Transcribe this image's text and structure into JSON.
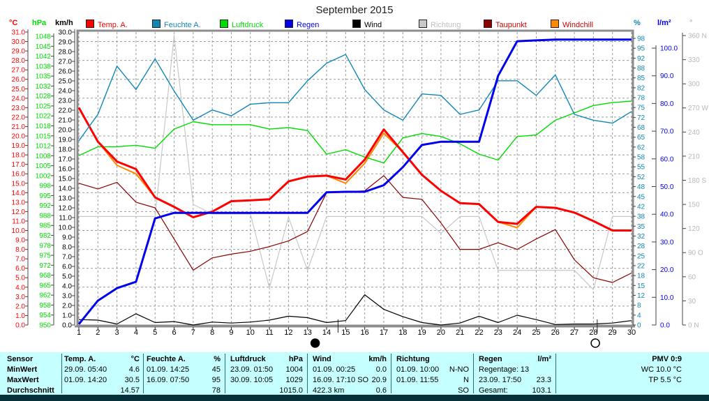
{
  "title": "September 2015",
  "legend": [
    {
      "label": "Temp. A.",
      "color": "#ff0000",
      "text_color": "#ff0000"
    },
    {
      "label": "Feuchte A.",
      "color": "#1187b8",
      "text_color": "#1187b8"
    },
    {
      "label": "Luftdruck",
      "color": "#00dd00",
      "text_color": "#00dd00"
    },
    {
      "label": "Regen",
      "color": "#0000ee",
      "text_color": "#0000ee"
    },
    {
      "label": "Wind",
      "color": "#000000",
      "text_color": "#000000"
    },
    {
      "label": "Richtung",
      "color": "#c8c8c8",
      "text_color": "#c0c0c0"
    },
    {
      "label": "Taupunkt",
      "color": "#8b0000",
      "text_color": "#cc0000"
    },
    {
      "label": "Windchill",
      "color": "#ff8800",
      "text_color": "#cc0000"
    }
  ],
  "axes": {
    "celsius": {
      "header": "°C",
      "color": "#ff0000",
      "labels": [
        "31.0",
        "30.0",
        "29.0",
        "28.0",
        "27.0",
        "26.0",
        "25.0",
        "24.0",
        "23.0",
        "22.0",
        "21.0",
        "20.0",
        "19.0",
        "18.0",
        "17.0",
        "16.0",
        "15.0",
        "14.0",
        "13.0",
        "12.0",
        "11.0",
        "10.0",
        "9.0",
        "8.0",
        "7.0",
        "6.0",
        "5.0",
        "4.0",
        "3.0",
        "2.0",
        "1.0",
        "0.0"
      ]
    },
    "hpa": {
      "header": "hPa",
      "color": "#00dd00",
      "labels": [
        "1048",
        "1045",
        "1042",
        "1038",
        "1035",
        "1032",
        "1028",
        "1025",
        "1022",
        "1018",
        "1015",
        "1012",
        "1008",
        "1005",
        "1002",
        "998",
        "995",
        "992",
        "988",
        "985",
        "982",
        "978",
        "975",
        "972",
        "968",
        "965",
        "962",
        "958",
        "954",
        "950"
      ]
    },
    "kmh": {
      "header": "km/h",
      "color": "#000000",
      "labels": [
        "30.0",
        "29.0",
        "28.0",
        "27.0",
        "26.0",
        "25.0",
        "24.0",
        "23.0",
        "22.0",
        "21.0",
        "20.0",
        "19.0",
        "18.0",
        "17.0",
        "16.0",
        "15.0",
        "14.0",
        "13.0",
        "12.0",
        "11.0",
        "10.0",
        "9.0",
        "8.0",
        "7.0",
        "6.0",
        "5.0",
        "4.0",
        "3.0",
        "2.0",
        "1.0",
        "0.0"
      ]
    },
    "percent": {
      "header": "%",
      "color": "#1187b8",
      "labels": [
        "98",
        "95",
        "92",
        "88",
        "85",
        "82",
        "78",
        "75",
        "72",
        "68",
        "65",
        "62",
        "58",
        "55",
        "52",
        "48",
        "45",
        "42",
        "38",
        "35",
        "32",
        "28",
        "25",
        "22",
        "18",
        "15",
        "12",
        "8",
        "4",
        "0"
      ]
    },
    "lm2": {
      "header": "l/m²",
      "color": "#0000ee",
      "labels": [
        "100.0",
        "90.0",
        "80.0",
        "70.0",
        "60.0",
        "50.0",
        "40.0",
        "30.0",
        "20.0",
        "10.0",
        "0.0"
      ]
    },
    "dir": {
      "header": "°",
      "color": "#b8b8b8",
      "labels": [
        "360 N",
        "330",
        "300",
        "270 W",
        "240",
        "210",
        "180 S",
        "150",
        "120",
        "90 O",
        "60",
        "30",
        "0 N"
      ]
    }
  },
  "chart_data": {
    "type": "line",
    "title": "September 2015",
    "x": [
      1,
      2,
      3,
      4,
      5,
      6,
      7,
      8,
      9,
      10,
      11,
      12,
      13,
      14,
      15,
      16,
      17,
      18,
      19,
      20,
      21,
      22,
      23,
      24,
      25,
      26,
      27,
      28,
      29,
      30
    ],
    "axis_ranges": {
      "celsius": {
        "min": 0,
        "max": 31,
        "unit": "°C"
      },
      "hpa": {
        "min": 950,
        "max": 1048,
        "unit": "hPa"
      },
      "kmh": {
        "min": 0,
        "max": 30,
        "unit": "km/h"
      },
      "percent": {
        "min": 0,
        "max": 98,
        "unit": "%"
      },
      "lm2": {
        "min": 0,
        "max": 100,
        "unit": "l/m²"
      },
      "dir": {
        "min": 0,
        "max": 360,
        "unit": "°"
      }
    },
    "series": [
      {
        "name": "Richtung",
        "axis": "dir",
        "color": "#c8c8c8",
        "width": 1.2,
        "values": [
          135,
          135,
          135,
          135,
          135,
          360,
          150,
          138,
          138,
          138,
          46,
          134,
          68,
          135,
          135,
          135,
          135,
          135,
          135,
          114,
          135,
          135,
          68,
          68,
          68,
          68,
          68,
          44,
          135,
          135
        ]
      },
      {
        "name": "Windchill",
        "axis": "celsius",
        "color": "#ff8800",
        "width": 2,
        "values": [
          23.0,
          19.4,
          16.9,
          16.0,
          13.5,
          12.5,
          11.4,
          12.0,
          13.1,
          13.2,
          13.3,
          15.2,
          15.7,
          15.8,
          15.0,
          17.1,
          20.3,
          18.3,
          15.9,
          14.2,
          12.9,
          12.8,
          10.9,
          10.3,
          12.5,
          12.4,
          11.9,
          11.0,
          10.0,
          10.0
        ]
      },
      {
        "name": "Taupunkt",
        "axis": "celsius",
        "color": "#8b0000",
        "width": 1.2,
        "values": [
          15.0,
          14.4,
          15.1,
          13.0,
          12.4,
          9.1,
          5.8,
          7.1,
          7.5,
          7.8,
          8.3,
          8.9,
          9.9,
          14.0,
          14.1,
          14.2,
          15.8,
          13.5,
          13.3,
          10.8,
          8.0,
          8.0,
          8.7,
          8.0,
          9.1,
          10.1,
          6.9,
          5.0,
          4.5,
          5.5
        ]
      },
      {
        "name": "Luftdruck",
        "axis": "hpa",
        "color": "#00dd00",
        "width": 1.4,
        "values": [
          1007.5,
          1010.5,
          1010.5,
          1011,
          1010,
          1016.5,
          1019,
          1018,
          1018,
          1018,
          1016.5,
          1017,
          1016,
          1008,
          1009.5,
          1007,
          1005,
          1013.5,
          1015,
          1014,
          1011.5,
          1008,
          1006,
          1014,
          1014.5,
          1019.5,
          1022,
          1024.5,
          1025.5,
          1026
        ]
      },
      {
        "name": "Temp. A.",
        "axis": "celsius",
        "color": "#ff0000",
        "width": 3,
        "values": [
          23.0,
          19.4,
          17.3,
          16.5,
          13.5,
          12.5,
          11.4,
          12.0,
          13.1,
          13.2,
          13.3,
          15.2,
          15.7,
          15.8,
          15.4,
          17.5,
          20.7,
          18.3,
          15.9,
          14.2,
          12.9,
          12.8,
          10.9,
          10.7,
          12.5,
          12.4,
          11.9,
          11.0,
          10.0,
          10.0
        ]
      },
      {
        "name": "Feuchte A.",
        "axis": "percent",
        "color": "#1187b8",
        "width": 1.4,
        "values": [
          63,
          72,
          88.5,
          80.5,
          91,
          80,
          70,
          73.5,
          71.5,
          75.5,
          76,
          76,
          83.5,
          89.5,
          92.5,
          80.5,
          73.5,
          70,
          79,
          78.5,
          72,
          73.5,
          83.5,
          83.5,
          78.5,
          85.5,
          72,
          70,
          69,
          73
        ]
      },
      {
        "name": "Wind",
        "axis": "kmh",
        "color": "#000000",
        "width": 1.2,
        "values": [
          0.55,
          0.5,
          0.1,
          1.15,
          0.25,
          0.35,
          0.0,
          0.3,
          0.2,
          0.3,
          0.5,
          0.9,
          0.75,
          0.25,
          0.45,
          3.1,
          1.6,
          0.85,
          0.25,
          0.0,
          0.2,
          0.9,
          0.25,
          1.0,
          0.55,
          0.05,
          0.1,
          0.1,
          0.2,
          0.45
        ]
      },
      {
        "name": "Regen",
        "axis": "lm2",
        "color": "#0000ee",
        "width": 3,
        "values": [
          0.3,
          8.8,
          13.3,
          15.6,
          38.5,
          40.5,
          40.5,
          40.5,
          40.5,
          40.5,
          40.5,
          40.5,
          40.5,
          47.9,
          48.1,
          48.1,
          50.5,
          57,
          65,
          66.2,
          66.2,
          66.2,
          90,
          102.5,
          102.8,
          103.1,
          103.1,
          103.1,
          103.1,
          103.1
        ]
      }
    ],
    "grid": true,
    "legend_position": "top"
  },
  "moon": [
    {
      "symbol": "new-moon",
      "day": 13.4,
      "tick_day": 14.6
    },
    {
      "symbol": "full-moon",
      "day": 28.1,
      "tick_day": 28.2
    }
  ],
  "table": {
    "row_labels": [
      "Sensor",
      "MinWert",
      "MaxWert",
      "Durchschnitt"
    ],
    "columns": [
      {
        "name": "Temp. A.",
        "unit": "°C",
        "rows": [
          [
            "29.09.  05:40",
            "4.6"
          ],
          [
            "01.09.  14:20",
            "30.5"
          ],
          [
            "",
            "14.57"
          ]
        ]
      },
      {
        "name": "Feuchte A.",
        "unit": "%",
        "rows": [
          [
            "01.09.  14:25",
            "45"
          ],
          [
            "16.09.  07:50",
            "95"
          ],
          [
            "",
            "78"
          ]
        ]
      },
      {
        "name": "Luftdruck",
        "unit": "hPa",
        "rows": [
          [
            "23.09.  01:50",
            "1004"
          ],
          [
            "30.09.  10:05",
            "1029"
          ],
          [
            "",
            "1015.0"
          ]
        ]
      },
      {
        "name": "Wind",
        "unit": "km/h",
        "rows": [
          [
            "01.09.  00:25",
            "0.0"
          ],
          [
            "16.09.  17:10 SO",
            "20.9"
          ],
          [
            "422.3 km",
            "0.6"
          ]
        ]
      },
      {
        "name": "Richtung",
        "unit": "",
        "rows": [
          [
            "01.09.  10:00",
            "N-NO"
          ],
          [
            "01.09.  11:55",
            "N"
          ],
          [
            "",
            "SO"
          ]
        ]
      },
      {
        "name": "Regen",
        "unit": "l/m²",
        "rows": [
          [
            "Regentage: 13",
            ""
          ],
          [
            "23.09.  17:50",
            "23.3"
          ],
          [
            "Gesamt:",
            "103.1"
          ]
        ]
      }
    ],
    "pmv": {
      "title": "PMV 0:9",
      "line1": "WC 10.0 °C",
      "line2": "TP 5.5 °C"
    }
  },
  "colors": {
    "table_bg": "#c6ffff",
    "bottom_bar": "#07313a",
    "grid": "#9a9a9a",
    "frame": "#8c8c8c"
  }
}
